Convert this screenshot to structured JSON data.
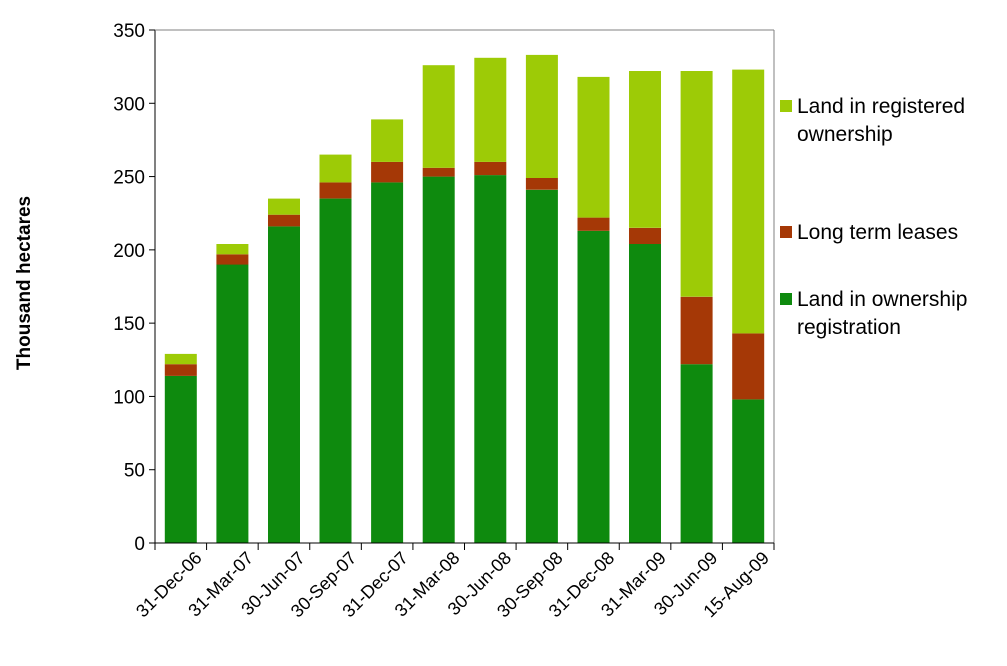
{
  "chart_data": {
    "type": "bar",
    "stacked": true,
    "title": "",
    "xlabel": "",
    "ylabel": "Thousand hectares",
    "ylim": [
      0,
      350
    ],
    "yticks": [
      0,
      50,
      100,
      150,
      200,
      250,
      300,
      350
    ],
    "grid": false,
    "legend_position": "right",
    "categories": [
      "31-Dec-06",
      "31-Mar-07",
      "30-Jun-07",
      "30-Sep-07",
      "31-Dec-07",
      "31-Mar-08",
      "30-Jun-08",
      "30-Sep-08",
      "31-Dec-08",
      "31-Mar-09",
      "30-Jun-09",
      "15-Aug-09"
    ],
    "series": [
      {
        "name": "Land in ownership registration",
        "legend_lines": [
          "Land in ownership",
          "registration"
        ],
        "color": "#0e8a0e",
        "values": [
          114,
          190,
          216,
          235,
          246,
          250,
          251,
          241,
          213,
          204,
          122,
          98
        ]
      },
      {
        "name": "Long term leases",
        "legend_lines": [
          "Long term leases"
        ],
        "color": "#a53806",
        "values": [
          8,
          7,
          8,
          11,
          14,
          6,
          9,
          8,
          9,
          11,
          46,
          45
        ]
      },
      {
        "name": "Land in registered ownership",
        "legend_lines": [
          "Land in registered",
          "ownership"
        ],
        "color": "#9dcb06",
        "values": [
          7,
          7,
          11,
          19,
          29,
          70,
          71,
          84,
          96,
          107,
          154,
          180
        ]
      }
    ]
  }
}
